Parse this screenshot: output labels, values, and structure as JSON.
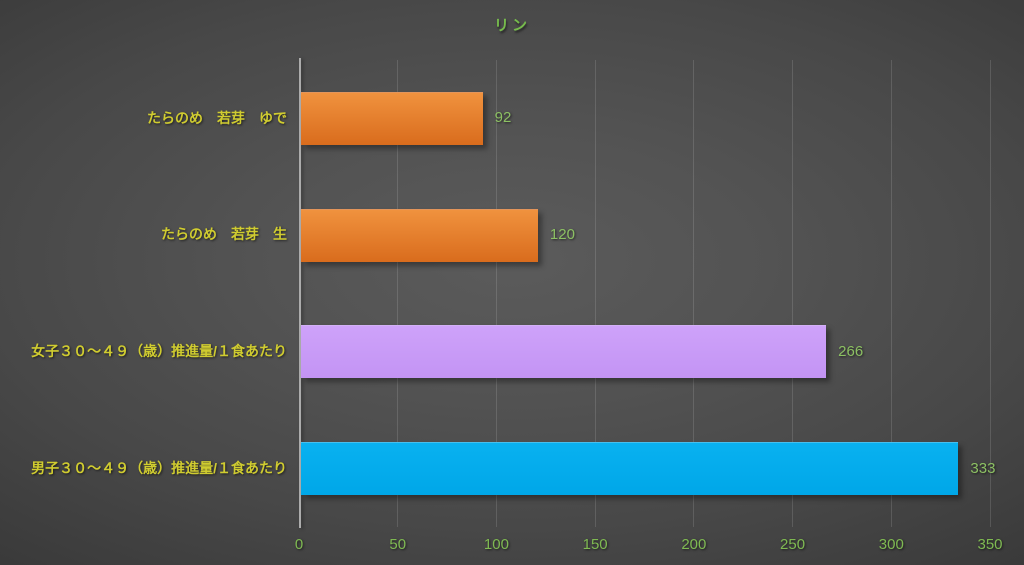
{
  "title": "リン",
  "colors": {
    "title_text": "#76BB4C",
    "category_text": "#D0CC30",
    "value_text": "#8CC063",
    "tick_text": "#7FBA52",
    "axis_line": "#ACACAC",
    "gridline": "rgba(255,255,255,0.13)"
  },
  "chart_data": {
    "type": "bar",
    "orientation": "horizontal",
    "title": "リン",
    "categories": [
      "たらのめ　若芽　ゆで",
      "たらのめ　若芽　生",
      "女子３０～４９（歳）推進量/１食あたり",
      "男子３０～４９（歳）推進量/１食あたり"
    ],
    "values": [
      92,
      120,
      266,
      333
    ],
    "value_labels": [
      "92",
      "120",
      "266",
      "333"
    ],
    "bar_colors": [
      {
        "top": "#F0923E",
        "bottom": "#D96C1D"
      },
      {
        "top": "#F0923E",
        "bottom": "#D96C1D"
      },
      {
        "top": "#CEA2FA",
        "bottom": "#C394F4"
      },
      {
        "top": "#09B1F0",
        "bottom": "#00A7E8"
      }
    ],
    "xlabel": "",
    "ylabel": "",
    "xlim": [
      0,
      350
    ],
    "xticks": [
      0,
      50,
      100,
      150,
      200,
      250,
      300,
      350
    ],
    "grid": true,
    "legend": false
  }
}
